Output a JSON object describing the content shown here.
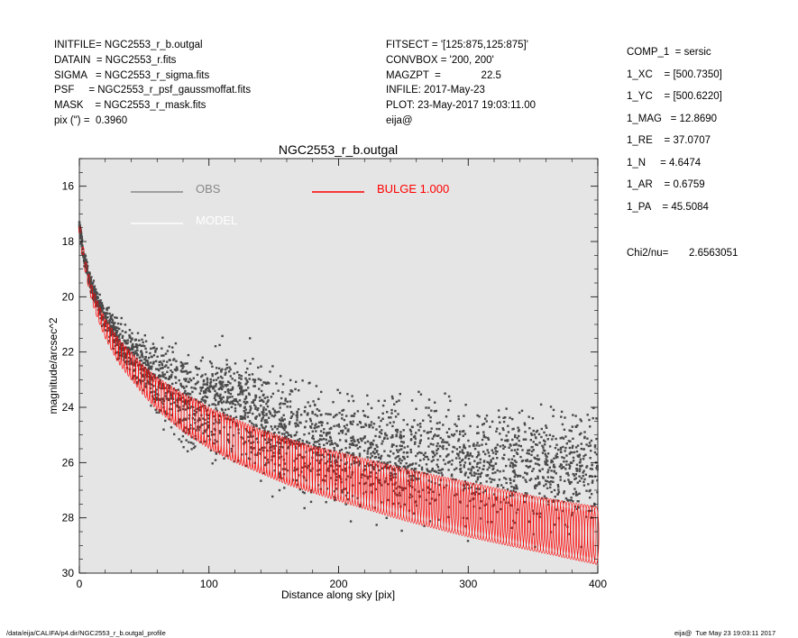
{
  "header": {
    "left_lines": [
      "INITFILE= NGC2553_r_b.outgal",
      "DATAIN  = NGC2553_r.fits",
      "SIGMA   = NGC2553_r_sigma.fits",
      "PSF     = NGC2553_r_psf_gaussmoffat.fits",
      "MASK    = NGC2553_r_mask.fits",
      "pix (\") =  0.3960"
    ],
    "mid_lines": [
      "FITSECT = '[125:875,125:875]'",
      "CONVBOX = '200, 200'",
      "MAGZPT  =              22.5",
      "INFILE: 2017-May-23",
      "PLOT: 23-May-2017 19:03:11.00",
      "eija@"
    ]
  },
  "params": {
    "lines": [
      "COMP_1  = sersic",
      "1_XC    = [500.7350]",
      "1_YC    = [500.6220]",
      "1_MAG   = 12.8690",
      "1_RE    = 37.0707",
      "1_N     = 4.6474",
      "1_AR    = 0.6759",
      "1_PA    = 45.5084"
    ],
    "chi2_label": "Chi2/nu=",
    "chi2_value": "2.6563051"
  },
  "footer": {
    "left": "/data/eija/CALIFA/p4.dir/NGC2553_r_b.outgal_profile",
    "right": "eija@  Tue May 23 19:03:11 2017"
  },
  "colors": {
    "background": "#e5e5e5",
    "obs": "#4a4a4a",
    "model": "#ffffff",
    "bulge": "#ff0000",
    "axis": "#000000"
  },
  "chart_data": {
    "type": "scatter",
    "title": "NGC2553_r_b.outgal",
    "xlabel": "Distance along sky [pix]",
    "ylabel": "magnitude/arcsec^2",
    "xlim": [
      0,
      400
    ],
    "ylim": [
      30,
      15
    ],
    "y_inverted": true,
    "x_ticks": [
      0,
      100,
      200,
      300,
      400
    ],
    "y_ticks": [
      16,
      18,
      20,
      22,
      24,
      26,
      28,
      30
    ],
    "legend": {
      "placement": "top-left",
      "entries": [
        {
          "label": "OBS",
          "color": "#888888"
        },
        {
          "label": "MODEL",
          "color": "#ffffff"
        },
        {
          "label": "BULGE  1.000",
          "color": "#ff0000"
        }
      ]
    },
    "series": [
      {
        "name": "OBS",
        "style": "scatter",
        "profile_x": [
          0,
          3,
          6,
          10,
          15,
          20,
          30,
          40,
          50,
          60,
          70,
          80,
          90,
          100,
          110,
          120,
          140,
          160,
          180,
          200,
          250,
          300,
          350,
          400
        ],
        "profile_y_center": [
          17.4,
          18.4,
          19.0,
          19.7,
          20.3,
          20.8,
          21.5,
          22.1,
          22.5,
          23.0,
          23.4,
          23.7,
          23.9,
          24.0,
          24.0,
          24.0,
          24.6,
          25.0,
          25.3,
          25.5,
          25.8,
          26.0,
          26.1,
          26.2
        ],
        "profile_y_spread": [
          0.2,
          0.3,
          0.3,
          0.4,
          0.4,
          0.5,
          0.7,
          0.9,
          1.1,
          1.3,
          1.6,
          1.8,
          1.9,
          2.0,
          2.0,
          2.0,
          2.0,
          2.0,
          2.1,
          2.1,
          2.1,
          2.2,
          2.2,
          2.2
        ]
      },
      {
        "name": "MODEL",
        "style": "band",
        "x": [
          0,
          3,
          6,
          10,
          15,
          20,
          30,
          40,
          50,
          60,
          70,
          80,
          90,
          100,
          120,
          140,
          160,
          180,
          200,
          250,
          300,
          350,
          400
        ],
        "y_top": [
          17.3,
          18.3,
          19.0,
          19.7,
          20.3,
          20.8,
          21.5,
          22.0,
          22.5,
          22.9,
          23.2,
          23.5,
          23.7,
          24.0,
          24.4,
          24.8,
          25.1,
          25.4,
          25.6,
          26.2,
          26.7,
          27.2,
          27.6
        ],
        "y_bottom": [
          17.5,
          18.6,
          19.4,
          20.2,
          20.9,
          21.5,
          22.4,
          23.0,
          23.6,
          24.1,
          24.5,
          24.9,
          25.2,
          25.5,
          26.0,
          26.4,
          26.8,
          27.1,
          27.4,
          28.1,
          28.7,
          29.2,
          29.7
        ]
      }
    ]
  }
}
